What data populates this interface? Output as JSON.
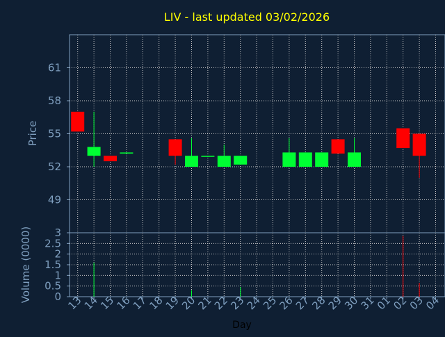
{
  "chart_data": {
    "type": "candlestick",
    "title": "LIV - last updated 03/02/2026",
    "xlabel": "Day",
    "price_panel": {
      "ylabel": "Price",
      "ylim": [
        46,
        64
      ],
      "yticks": [
        49,
        52,
        55,
        58,
        61
      ]
    },
    "volume_panel": {
      "ylabel": "Volume (0000)",
      "ylim": [
        0,
        3
      ],
      "yticks": [
        0,
        0.5,
        1,
        1.5,
        2,
        2.5,
        3
      ],
      "ytick_labels": [
        "0",
        "0.5",
        "1",
        "1.5",
        "2",
        "2.5",
        "3"
      ]
    },
    "x_ticks": [
      "13",
      "14",
      "15",
      "16",
      "17",
      "18",
      "19",
      "20",
      "21",
      "22",
      "23",
      "24",
      "25",
      "26",
      "27",
      "28",
      "29",
      "30",
      "31",
      "01",
      "02",
      "03",
      "04"
    ],
    "colors": {
      "background": "#0f1f33",
      "up": "#00ff33",
      "down": "#ff0000",
      "grid": "#c8c8c8",
      "title": "#ffff00",
      "tick": "#7f9fbf"
    },
    "candles": [
      {
        "x": 0.0,
        "open": 57.0,
        "high": 57.0,
        "low": 55.2,
        "close": 55.2,
        "volume": 0.0
      },
      {
        "x": 1.0,
        "open": 53.0,
        "high": 57.0,
        "low": 52.0,
        "close": 53.8,
        "volume": 1.6
      },
      {
        "x": 2.0,
        "open": 53.0,
        "high": 53.0,
        "low": 52.5,
        "close": 52.5,
        "volume": 0.0
      },
      {
        "x": 3.0,
        "open": 53.2,
        "high": 53.3,
        "low": 53.2,
        "close": 53.3,
        "volume": 0.0
      },
      {
        "x": 6.0,
        "open": 54.5,
        "high": 54.5,
        "low": 52.2,
        "close": 53.0,
        "volume": 0.0
      },
      {
        "x": 7.0,
        "open": 52.0,
        "high": 54.6,
        "low": 52.0,
        "close": 53.0,
        "volume": 0.3
      },
      {
        "x": 8.0,
        "open": 52.9,
        "high": 53.0,
        "low": 52.9,
        "close": 53.0,
        "volume": 0.0
      },
      {
        "x": 9.0,
        "open": 52.0,
        "high": 54.0,
        "low": 52.0,
        "close": 53.0,
        "volume": 0.0
      },
      {
        "x": 10.0,
        "open": 52.2,
        "high": 53.0,
        "low": 52.2,
        "close": 53.0,
        "volume": 0.45
      },
      {
        "x": 13.0,
        "open": 52.0,
        "high": 54.6,
        "low": 52.0,
        "close": 53.3,
        "volume": 0.0
      },
      {
        "x": 14.0,
        "open": 52.0,
        "high": 53.3,
        "low": 52.0,
        "close": 53.3,
        "volume": 0.0
      },
      {
        "x": 15.0,
        "open": 52.0,
        "high": 53.3,
        "low": 52.0,
        "close": 53.3,
        "volume": 0.0
      },
      {
        "x": 16.0,
        "open": 54.5,
        "high": 54.5,
        "low": 53.2,
        "close": 53.2,
        "volume": 0.0
      },
      {
        "x": 17.0,
        "open": 52.0,
        "high": 54.6,
        "low": 52.0,
        "close": 53.3,
        "volume": 0.0
      },
      {
        "x": 20.0,
        "open": 55.5,
        "high": 55.5,
        "low": 53.7,
        "close": 53.7,
        "volume": 2.85
      },
      {
        "x": 21.0,
        "open": 55.0,
        "high": 55.0,
        "low": 51.0,
        "close": 53.0,
        "volume": 0.65
      }
    ]
  }
}
